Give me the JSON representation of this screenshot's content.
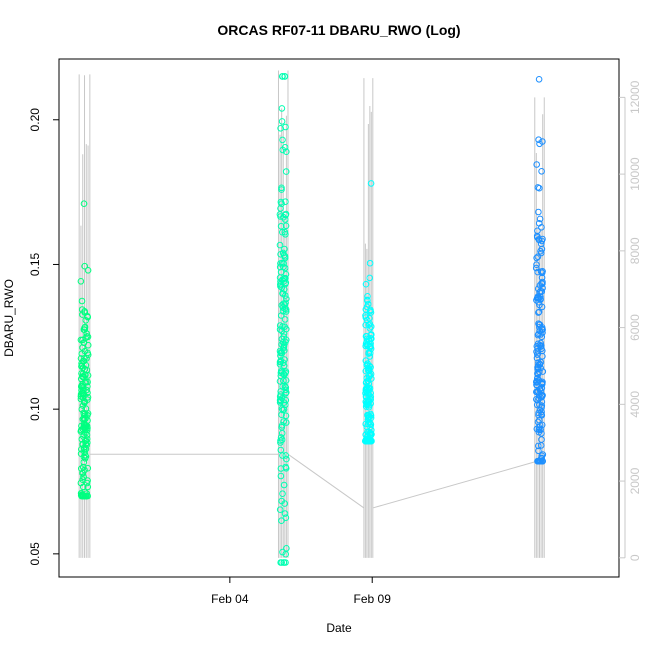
{
  "chart_data": {
    "type": "scatter",
    "title": "ORCAS RF07-11 DBARU_RWO (Log)",
    "xlabel": "Date",
    "ylabel": "DBARU_RWO",
    "ylim": [
      0.042,
      0.221
    ],
    "yticks": [
      0.05,
      0.1,
      0.15,
      0.2
    ],
    "ytick_labels": [
      "0.05",
      "0.10",
      "0.15",
      "0.20"
    ],
    "xlim": [
      "2016-01-29T00:00",
      "2016-02-17T16:00"
    ],
    "xticks": [
      "2016-02-04T00:00",
      "2016-02-09T00:00"
    ],
    "xtick_labels": [
      "Feb 04",
      "Feb 09"
    ],
    "y2lim": [
      -500,
      13000
    ],
    "y2ticks": [
      0,
      2000,
      4000,
      6000,
      8000,
      10000,
      12000
    ],
    "y2tick_labels": [
      "0",
      "2000",
      "4000",
      "6000",
      "8000",
      "10000",
      "12000"
    ],
    "grid": false,
    "secondary_series": {
      "axis": "right",
      "color": "#c8c8c8",
      "flights": [
        {
          "start": "2016-01-29T17:00",
          "end": "2016-01-30T02:00",
          "min": 0,
          "max": 12600,
          "end_value": 2700
        },
        {
          "start": "2016-02-05T17:00",
          "end": "2016-02-06T01:00",
          "min": 0,
          "max": 12700,
          "end_value": 2700
        },
        {
          "start": "2016-02-08T17:00",
          "end": "2016-02-09T00:30",
          "min": 0,
          "max": 12500,
          "end_value": 1300
        },
        {
          "start": "2016-02-14T17:00",
          "end": "2016-02-15T01:00",
          "min": 0,
          "max": 12000,
          "end_value": 2500
        }
      ]
    },
    "series": [
      {
        "color": "#00ff80",
        "x_start": "2016-01-29T17:00",
        "x_end": "2016-01-30T02:00",
        "y_center": 0.097,
        "y_min": 0.07,
        "y_max": 0.171
      },
      {
        "color": "#00ffb2",
        "x_start": "2016-02-05T17:00",
        "x_end": "2016-02-06T01:00",
        "y_center": 0.125,
        "y_min": 0.047,
        "y_max": 0.215
      },
      {
        "color": "#00ffff",
        "x_start": "2016-02-08T17:00",
        "x_end": "2016-02-09T00:30",
        "y_center": 0.103,
        "y_min": 0.089,
        "y_max": 0.178
      },
      {
        "color": "#1e90ff",
        "x_start": "2016-02-14T17:00",
        "x_end": "2016-02-15T01:00",
        "y_center": 0.12,
        "y_min": 0.082,
        "y_max": 0.214
      }
    ]
  }
}
